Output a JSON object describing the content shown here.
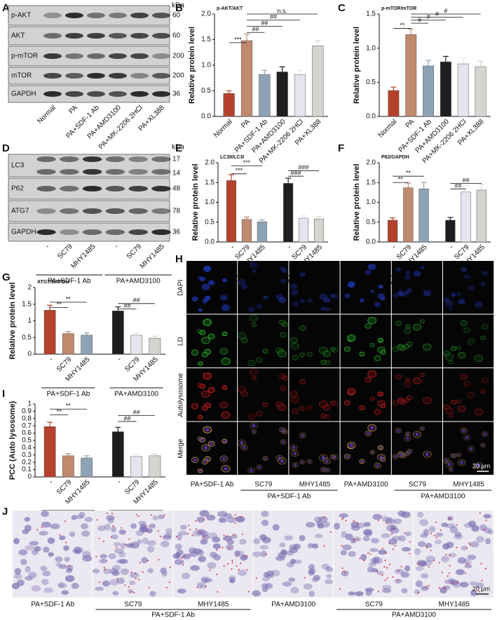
{
  "chart_data": [
    {
      "type": "bar",
      "title": "p-AKT/AKT",
      "ylabel": "Relative protein level",
      "categories": [
        "Normal",
        "PA",
        "PA+SDF-1 Ab",
        "PA+AMD3100",
        "PA+MK-2206 2HCl",
        "PA+XL388"
      ],
      "values": [
        0.45,
        1.48,
        0.82,
        0.87,
        0.82,
        1.38
      ],
      "errors": [
        0.05,
        0.13,
        0.08,
        0.1,
        0.08,
        0.1
      ],
      "colors": [
        "#b5412c",
        "#c08a6e",
        "#8ea3b5",
        "#1e1e1e",
        "#e6e4ee",
        "#d6d4cf"
      ],
      "ylim": [
        0,
        2
      ],
      "yticks": [
        {
          "value": 0,
          "label": "0.0"
        },
        0.5,
        {
          "value": 1,
          "label": "1.0"
        },
        1.5,
        {
          "value": 2,
          "label": "2.0"
        }
      ],
      "annotations": [
        "***",
        "##",
        "##",
        "##",
        "n.s."
      ]
    },
    {
      "type": "bar",
      "title": "p-mTOR/mTOR",
      "ylabel": "Relative protein level",
      "categories": [
        "Normal",
        "PA",
        "PA+SDF-1 Ab",
        "PA+AMD3100",
        "PA+MK-2206 2HCl",
        "PA+XL388"
      ],
      "values": [
        0.38,
        1.2,
        0.74,
        0.8,
        0.77,
        0.73
      ],
      "errors": [
        0.05,
        0.08,
        0.08,
        0.08,
        0.08,
        0.08
      ],
      "colors": [
        "#b5412c",
        "#c08a6e",
        "#8ea3b5",
        "#1e1e1e",
        "#e6e4ee",
        "#d6d4cf"
      ],
      "ylim": [
        0,
        1.5
      ],
      "yticks": [
        {
          "value": 0,
          "label": "0.0"
        },
        0.5,
        {
          "value": 1,
          "label": "1.0"
        },
        1.5
      ],
      "annotations": [
        "**",
        "#",
        "#",
        "#",
        "#"
      ]
    },
    {
      "type": "bar",
      "title": "LC3II/LC3I",
      "ylabel": "Relative protein level",
      "categories": [
        "-",
        "SC79",
        "MHY1485",
        "-",
        "SC79",
        "MHY1485"
      ],
      "groups": [
        "PA+SDF-1 Ab",
        "PA+AMD3100"
      ],
      "values": [
        1.55,
        0.57,
        0.51,
        1.48,
        0.6,
        0.58
      ],
      "errors": [
        0.15,
        0.06,
        0.05,
        0.13,
        0.06,
        0.06
      ],
      "colors": [
        "#b5412c",
        "#c08a6e",
        "#8ea3b5",
        "#1e1e1e",
        "#e6e4ee",
        "#d6d4cf"
      ],
      "ylim": [
        0,
        2
      ],
      "yticks": [
        {
          "value": 0,
          "label": "0.0"
        },
        0.5,
        {
          "value": 1,
          "label": "1.0"
        },
        1.5,
        {
          "value": 2,
          "label": "2.0"
        }
      ],
      "annotations": [
        "***",
        "***",
        "###",
        "###"
      ]
    },
    {
      "type": "bar",
      "title": "P62/GAPDH",
      "ylabel": "Relative protein level",
      "categories": [
        "-",
        "SC79",
        "MHY1485",
        "-",
        "SC79",
        "MHY1485"
      ],
      "groups": [
        "PA+SDF-1 Ab",
        "PA+AMD3100"
      ],
      "values": [
        0.55,
        1.37,
        1.34,
        0.55,
        1.26,
        1.31
      ],
      "errors": [
        0.06,
        0.12,
        0.16,
        0.07,
        0.17,
        0.15
      ],
      "colors": [
        "#b5412c",
        "#c08a6e",
        "#8ea3b5",
        "#1e1e1e",
        "#e6e4ee",
        "#d6d4cf"
      ],
      "ylim": [
        0,
        2
      ],
      "yticks": [
        {
          "value": 0,
          "label": "0.0"
        },
        0.5,
        {
          "value": 1,
          "label": "1.0"
        },
        1.5,
        {
          "value": 2,
          "label": "2.0"
        }
      ],
      "annotations": [
        "**",
        "**",
        "##",
        "##"
      ]
    },
    {
      "type": "bar",
      "title": "ATG7/GAPDH",
      "ylabel": "Relative protein level",
      "categories": [
        "-",
        "SC79",
        "MHY1485",
        "-",
        "SC79",
        "MHY1485"
      ],
      "groups": [
        "PA+SDF-1 Ab",
        "PA+AMD3100"
      ],
      "values": [
        1.32,
        0.62,
        0.57,
        1.3,
        0.57,
        0.48
      ],
      "errors": [
        0.15,
        0.06,
        0.07,
        0.12,
        0.07,
        0.06
      ],
      "colors": [
        "#b5412c",
        "#c08a6e",
        "#8ea3b5",
        "#1e1e1e",
        "#e6e4ee",
        "#d6d4cf"
      ],
      "ylim": [
        0,
        2
      ],
      "yticks": [
        0,
        0.5,
        1,
        1.5,
        2
      ],
      "annotations": [
        "**",
        "**",
        "##",
        "##"
      ]
    },
    {
      "type": "bar",
      "ylabel": "PCC (Auto lysosome)",
      "categories": [
        "-",
        "SC79",
        "MHY1485",
        "-",
        "SC79",
        "MHY1485"
      ],
      "groups": [
        "PA+SDF-1 Ab",
        "PA+AMD3100"
      ],
      "values": [
        0.69,
        0.29,
        0.26,
        0.62,
        0.28,
        0.29
      ],
      "errors": [
        0.06,
        0.03,
        0.03,
        0.06,
        0.03,
        0.03
      ],
      "colors": [
        "#b5412c",
        "#c08a6e",
        "#8ea3b5",
        "#1e1e1e",
        "#e6e4ee",
        "#d6d4cf"
      ],
      "ylim": [
        0,
        1
      ],
      "yticks": [
        0,
        0.1,
        0.2,
        0.3,
        0.4,
        0.5,
        0.6,
        0.7,
        0.8,
        0.9,
        1
      ],
      "annotations": [
        "**",
        "**",
        "##",
        "##"
      ]
    }
  ],
  "panel_letters": [
    "A",
    "B",
    "C",
    "D",
    "E",
    "F",
    "G",
    "H",
    "I",
    "J"
  ],
  "blot_a": {
    "unit": "kDa",
    "rows": [
      {
        "label": "p-AKT",
        "kda": 60
      },
      {
        "label": "AKT",
        "kda": 60
      },
      {
        "label": "p-mTOR",
        "kda": 200
      },
      {
        "label": "mTOR",
        "kda": 200
      },
      {
        "label": "GAPDH",
        "kda": 36
      }
    ],
    "lanes": [
      "Normal",
      "PA",
      "PA+SDF-1 Ab",
      "PA+AMD3100",
      "PA+MK-2206 2HCl",
      "PA+XL388"
    ]
  },
  "blot_d": {
    "unit": "kDa",
    "rows": [
      {
        "label": "LC3",
        "kda": [
          17,
          14
        ]
      },
      {
        "label": "P62",
        "kda": [
          48
        ]
      },
      {
        "label": "ATG7",
        "kda": [
          78
        ]
      },
      {
        "label": "GAPDH",
        "kda": [
          36
        ]
      }
    ],
    "lanes": [
      "-",
      "SC79",
      "MHY1485",
      "-",
      "SC79",
      "MHY1485"
    ],
    "groups": [
      "PA+SDF-1 Ab",
      "PA+AMD3100"
    ]
  },
  "imaging_h": {
    "rows": [
      "DAPI",
      "LD",
      "Autolysosome",
      "Merge"
    ],
    "columns": [
      "PA+SDF-1 Ab",
      "SC79",
      "MHY1485",
      "PA+AMD3100",
      "SC79",
      "MHY1485"
    ],
    "groups": [
      "PA+SDF-1 Ab",
      "PA+AMD3100"
    ],
    "scale_bar": "20 μm"
  },
  "staining_j": {
    "columns": [
      "PA+SDF-1 Ab",
      "SC79",
      "MHY1485",
      "PA+AMD3100",
      "SC79",
      "MHY1485"
    ],
    "groups": [
      "PA+SDF-1 Ab",
      "PA+AMD3100"
    ],
    "scale_bar": "20 μm"
  }
}
